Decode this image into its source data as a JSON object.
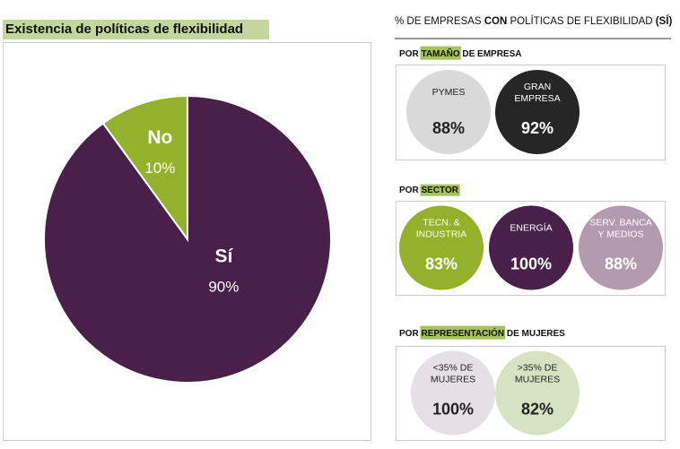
{
  "chart_data": {
    "type": "pie",
    "title": "Existencia de políticas de flexibilidad",
    "categories": [
      "Sí",
      "No"
    ],
    "values": [
      90,
      10
    ],
    "value_labels": [
      "90%",
      "10%"
    ],
    "colors": [
      "#48204a",
      "#93b12a"
    ]
  },
  "panel": {
    "title": [
      "% DE EMPRESAS ",
      "CON",
      " POLÍTICAS DE FLEXIBILIDAD ",
      "(SÍ)"
    ],
    "groups": [
      {
        "title": [
          "POR ",
          "TAMAÑO",
          " DE EMPRESA"
        ],
        "items": [
          {
            "label": [
              "PYMES"
            ],
            "value": "88%",
            "color": "#d9d9d9"
          },
          {
            "label": [
              "GRAN",
              "EMPRESA"
            ],
            "value": "92%",
            "color": "#262626"
          }
        ]
      },
      {
        "title": [
          "POR ",
          "SECTOR",
          ""
        ],
        "items": [
          {
            "label": [
              "TECN. &",
              "INDUSTRIA"
            ],
            "value": "83%",
            "color": "#93b12a"
          },
          {
            "label": [
              "ENERGÍA"
            ],
            "value": "100%",
            "color": "#48204a"
          },
          {
            "label": [
              "SERV. BANCA",
              "Y MEDIOS"
            ],
            "value": "88%",
            "color": "#b39aae"
          }
        ]
      },
      {
        "title": [
          "POR ",
          "REPRESENTACIÓN",
          " DE MUJERES"
        ],
        "items": [
          {
            "label": [
              "<35% DE",
              "MUJERES"
            ],
            "value": "100%",
            "color": "#e6dfe6"
          },
          {
            "label": [
              ">35% DE",
              "MUJERES"
            ],
            "value": "82%",
            "color": "#d6e3c3"
          }
        ]
      }
    ]
  }
}
